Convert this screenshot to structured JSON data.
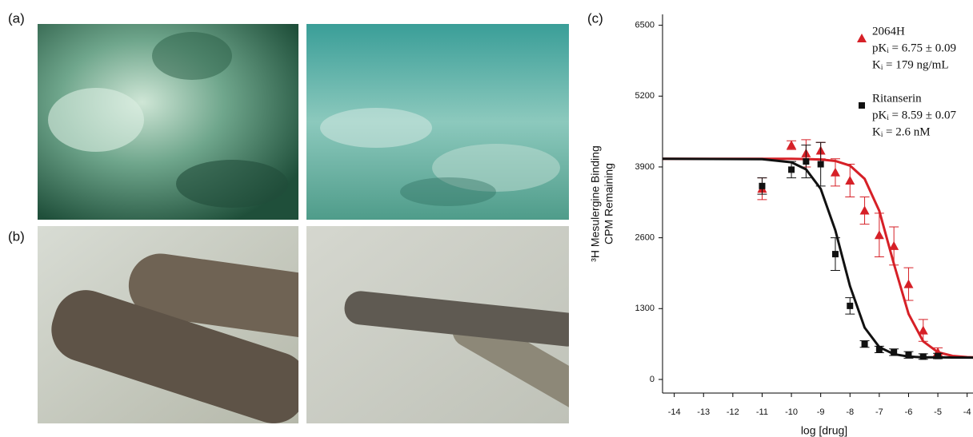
{
  "figure": {
    "panel_labels": [
      "(a)",
      "(b)"
    ]
  },
  "chart_data": {
    "type": "scatter",
    "panel_label": "(c)",
    "x_label": "log [drug]",
    "y_label": [
      "³H Mesulergine Binding",
      "CPM Remaining"
    ],
    "xlim": [
      -14.4,
      -3.8
    ],
    "ylim": [
      -250,
      6700
    ],
    "xticks": [
      -14,
      -13,
      -12,
      -11,
      -10,
      -9,
      -8,
      -7,
      -6,
      -5,
      -4
    ],
    "yticks": [
      0,
      1300,
      2600,
      3900,
      5200,
      6500
    ],
    "series": [
      {
        "name": "2064H",
        "color": "#d62027",
        "marker": "triangle",
        "annotations": [
          "pKᵢ = 6.75 ± 0.09",
          "Kᵢ = 179 ng/mL"
        ],
        "x": [
          -11,
          -10,
          -9.5,
          -9,
          -8.5,
          -8,
          -7.5,
          -7,
          -6.5,
          -6,
          -5.5,
          -5
        ],
        "values": [
          3500,
          4300,
          4150,
          4200,
          3800,
          3650,
          3100,
          2650,
          2450,
          1750,
          900,
          500
        ],
        "errors": [
          200,
          80,
          250,
          150,
          250,
          300,
          250,
          400,
          350,
          300,
          200,
          80
        ],
        "curve": {
          "x": [
            -14.4,
            -11,
            -10,
            -9,
            -8.5,
            -8,
            -7.5,
            -7,
            -6.5,
            -6,
            -5.5,
            -5,
            -4.5,
            -4,
            -3.8
          ],
          "y": [
            4050,
            4050,
            4049,
            4037,
            4010,
            3925,
            3682,
            3094,
            2120,
            1202,
            699,
            500,
            432,
            410,
            406
          ]
        }
      },
      {
        "name": "Ritanserin",
        "color": "#111111",
        "marker": "square",
        "annotations": [
          "pKᵢ = 8.59 ± 0.07",
          "Kᵢ = 2.6 nM"
        ],
        "x": [
          -11,
          -10,
          -9.5,
          -9,
          -8.5,
          -8,
          -7.5,
          -7,
          -6.5,
          -6,
          -5.5,
          -5
        ],
        "values": [
          3550,
          3850,
          4000,
          3950,
          2300,
          1350,
          650,
          550,
          500,
          450,
          420,
          430
        ],
        "errors": [
          150,
          150,
          300,
          400,
          300,
          150,
          60,
          60,
          60,
          60,
          50,
          50
        ],
        "curve": {
          "x": [
            -14.4,
            -11,
            -10,
            -9.5,
            -9,
            -8.5,
            -8,
            -7.5,
            -7,
            -6.5,
            -6,
            -5.5,
            -5,
            -4.5,
            -3.8
          ],
          "y": [
            4050,
            4043,
            3986,
            3856,
            3498,
            2737,
            1713,
            951,
            594,
            464,
            420,
            406,
            407,
            402,
            400
          ]
        }
      }
    ]
  }
}
